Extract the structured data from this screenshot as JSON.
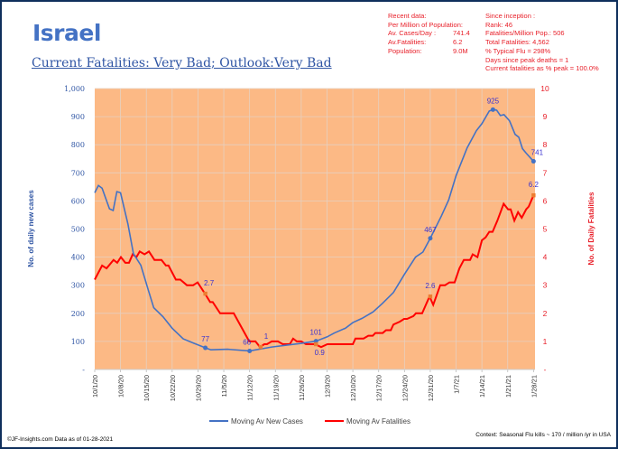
{
  "header": {
    "title": "Israel",
    "subtitle": "Current Fatalities: Very Bad; Outlook:Very Bad"
  },
  "recent_data": {
    "heading": "Recent data:",
    "subheading": "Per Million of Population:",
    "rows": [
      {
        "label": "Av. Cases/Day :",
        "value": "741.4"
      },
      {
        "label": "Av.Fatalities:",
        "value": "6.2"
      },
      {
        "label": "Population:",
        "value": "9.0M"
      }
    ]
  },
  "since_inception": {
    "heading": "Since inception :",
    "lines": [
      "Rank: 46",
      "Fatalities/Million Pop.: 506",
      "Total Fatalities: 4,562",
      "% Typical Flu = 298%",
      "Days since peak deaths = 1",
      "Current fatalities as % peak = 100.0%"
    ]
  },
  "footer": {
    "left": "©JF-Insights.com  Data as of 01-28-2021",
    "right": "Context: Seasonal Flu kills ~ 170 / million /yr in USA"
  },
  "colors": {
    "cases": "#4472c4",
    "fatalities": "#ff0000",
    "plot_bg": "#fcb985",
    "marker_fatal": "#ed7d31"
  },
  "chart_data": {
    "type": "line",
    "xlabel": "",
    "ylabel": "No. of daily new  cases",
    "y2label": "No. of Daily Fatalities",
    "ylim": [
      0,
      1000
    ],
    "y2lim": [
      0,
      10
    ],
    "grid": true,
    "legend_position": "bottom",
    "x_unit": "days since 10/1/20",
    "x_ticks": [
      {
        "day": 0,
        "label": "10/1/20"
      },
      {
        "day": 7,
        "label": "10/8/20"
      },
      {
        "day": 14,
        "label": "10/15/20"
      },
      {
        "day": 21,
        "label": "10/22/20"
      },
      {
        "day": 28,
        "label": "10/29/20"
      },
      {
        "day": 35,
        "label": "11/5/20"
      },
      {
        "day": 42,
        "label": "11/12/20"
      },
      {
        "day": 49,
        "label": "11/19/20"
      },
      {
        "day": 56,
        "label": "11/26/20"
      },
      {
        "day": 63,
        "label": "12/3/20"
      },
      {
        "day": 70,
        "label": "12/10/20"
      },
      {
        "day": 77,
        "label": "12/17/20"
      },
      {
        "day": 84,
        "label": "12/24/20"
      },
      {
        "day": 91,
        "label": "12/31/20"
      },
      {
        "day": 98,
        "label": "1/7/21"
      },
      {
        "day": 105,
        "label": "1/14/21"
      },
      {
        "day": 112,
        "label": "1/21/21"
      },
      {
        "day": 119,
        "label": "1/28/21"
      }
    ],
    "y_ticks": [
      "-",
      "100",
      "200",
      "300",
      "400",
      "500",
      "600",
      "700",
      "800",
      "900",
      "1,000"
    ],
    "y2_ticks": [
      "-",
      "1",
      "2",
      "3",
      "4",
      "5",
      "6",
      "7",
      "8",
      "9",
      "10"
    ],
    "series": [
      {
        "name": "Moving Av New Cases",
        "axis": "left",
        "points": [
          [
            0,
            629
          ],
          [
            1,
            655
          ],
          [
            2,
            645
          ],
          [
            4,
            572
          ],
          [
            5,
            566
          ],
          [
            6,
            633
          ],
          [
            7,
            629
          ],
          [
            9,
            518
          ],
          [
            10.5,
            412
          ],
          [
            12.5,
            371
          ],
          [
            14.5,
            284
          ],
          [
            16,
            220
          ],
          [
            18.5,
            188
          ],
          [
            21,
            147
          ],
          [
            24,
            109
          ],
          [
            27,
            93
          ],
          [
            30,
            77
          ],
          [
            31.5,
            70
          ],
          [
            36,
            72
          ],
          [
            42,
            66
          ],
          [
            48,
            80
          ],
          [
            56,
            93
          ],
          [
            60,
            101
          ],
          [
            63,
            116
          ],
          [
            65,
            130
          ],
          [
            68,
            147
          ],
          [
            70,
            167
          ],
          [
            72.5,
            182
          ],
          [
            75.5,
            205
          ],
          [
            78,
            235
          ],
          [
            81,
            274
          ],
          [
            84,
            339
          ],
          [
            87,
            400
          ],
          [
            89,
            418
          ],
          [
            91,
            467
          ],
          [
            94,
            546
          ],
          [
            96,
            604
          ],
          [
            98,
            690
          ],
          [
            101,
            789
          ],
          [
            103.5,
            850
          ],
          [
            105,
            875
          ],
          [
            107,
            920
          ],
          [
            108,
            925
          ],
          [
            109,
            923
          ],
          [
            110,
            904
          ],
          [
            111,
            907
          ],
          [
            112.5,
            885
          ],
          [
            114,
            837
          ],
          [
            115,
            827
          ],
          [
            116,
            786
          ],
          [
            117,
            770
          ],
          [
            119,
            741
          ]
        ],
        "labels": [
          {
            "day": 30,
            "value": 77,
            "text": "77"
          },
          {
            "day": 42,
            "value": 66,
            "text": "66"
          },
          {
            "day": 60,
            "value": 101,
            "text": "101"
          },
          {
            "day": 91,
            "value": 467,
            "text": "467"
          },
          {
            "day": 108,
            "value": 925,
            "text": "925"
          },
          {
            "day": 119,
            "value": 741,
            "text": "741"
          }
        ]
      },
      {
        "name": "Moving Av Fatalities",
        "axis": "right",
        "points": [
          [
            0,
            3.2
          ],
          [
            2,
            3.7
          ],
          [
            3.2,
            3.6
          ],
          [
            5.1,
            3.9
          ],
          [
            6.1,
            3.8
          ],
          [
            7.1,
            4.0
          ],
          [
            8.3,
            3.8
          ],
          [
            9.3,
            3.8
          ],
          [
            10.3,
            4.1
          ],
          [
            11.3,
            4.0
          ],
          [
            12.2,
            4.2
          ],
          [
            13.5,
            4.1
          ],
          [
            14.7,
            4.2
          ],
          [
            16.2,
            3.9
          ],
          [
            18.1,
            3.9
          ],
          [
            19.3,
            3.7
          ],
          [
            20,
            3.7
          ],
          [
            22,
            3.2
          ],
          [
            23.2,
            3.2
          ],
          [
            25,
            3.0
          ],
          [
            26.7,
            3.0
          ],
          [
            27.9,
            3.1
          ],
          [
            29.9,
            2.7
          ],
          [
            31.3,
            2.4
          ],
          [
            32,
            2.4
          ],
          [
            34,
            2.0
          ],
          [
            37.7,
            2.0
          ],
          [
            41.9,
            1.0
          ],
          [
            43.6,
            1.0
          ],
          [
            44.8,
            0.8
          ],
          [
            46,
            0.9
          ],
          [
            46.7,
            0.9
          ],
          [
            48,
            1.0
          ],
          [
            49.7,
            1.0
          ],
          [
            51,
            0.9
          ],
          [
            52.9,
            0.9
          ],
          [
            53.8,
            1.1
          ],
          [
            54.8,
            1.0
          ],
          [
            56,
            1.0
          ],
          [
            57.3,
            0.9
          ],
          [
            59.7,
            0.9
          ],
          [
            61.4,
            0.8
          ],
          [
            63.1,
            0.9
          ],
          [
            70,
            0.9
          ],
          [
            70.7,
            1.1
          ],
          [
            72.9,
            1.1
          ],
          [
            74.2,
            1.2
          ],
          [
            75.4,
            1.2
          ],
          [
            76.1,
            1.3
          ],
          [
            78.1,
            1.3
          ],
          [
            79,
            1.4
          ],
          [
            80.3,
            1.4
          ],
          [
            81,
            1.6
          ],
          [
            82.7,
            1.7
          ],
          [
            83.9,
            1.8
          ],
          [
            84.7,
            1.8
          ],
          [
            86.4,
            1.9
          ],
          [
            87.1,
            2.0
          ],
          [
            88.8,
            2.0
          ],
          [
            90.8,
            2.6
          ],
          [
            91.8,
            2.3
          ],
          [
            93.7,
            3.0
          ],
          [
            95,
            3.0
          ],
          [
            96.2,
            3.1
          ],
          [
            97.6,
            3.1
          ],
          [
            98.9,
            3.6
          ],
          [
            100.1,
            3.9
          ],
          [
            101.8,
            3.9
          ],
          [
            102.5,
            4.1
          ],
          [
            103.8,
            4.0
          ],
          [
            105,
            4.6
          ],
          [
            106,
            4.7
          ],
          [
            107,
            4.9
          ],
          [
            107.9,
            4.9
          ],
          [
            109.2,
            5.3
          ],
          [
            110.9,
            5.9
          ],
          [
            112.1,
            5.7
          ],
          [
            112.8,
            5.7
          ],
          [
            113.8,
            5.3
          ],
          [
            114.8,
            5.6
          ],
          [
            115.8,
            5.4
          ],
          [
            117,
            5.7
          ],
          [
            117.7,
            5.8
          ],
          [
            119,
            6.2
          ]
        ],
        "labels": [
          {
            "day": 30,
            "value": 2.7,
            "text": "2.7"
          },
          {
            "day": 45,
            "value": 0.8,
            "text": "1"
          },
          {
            "day": 60,
            "value": 0.9,
            "text": "0.9"
          },
          {
            "day": 91,
            "value": 2.6,
            "text": "2.6"
          },
          {
            "day": 119,
            "value": 6.2,
            "text": "6.2"
          }
        ]
      }
    ]
  }
}
